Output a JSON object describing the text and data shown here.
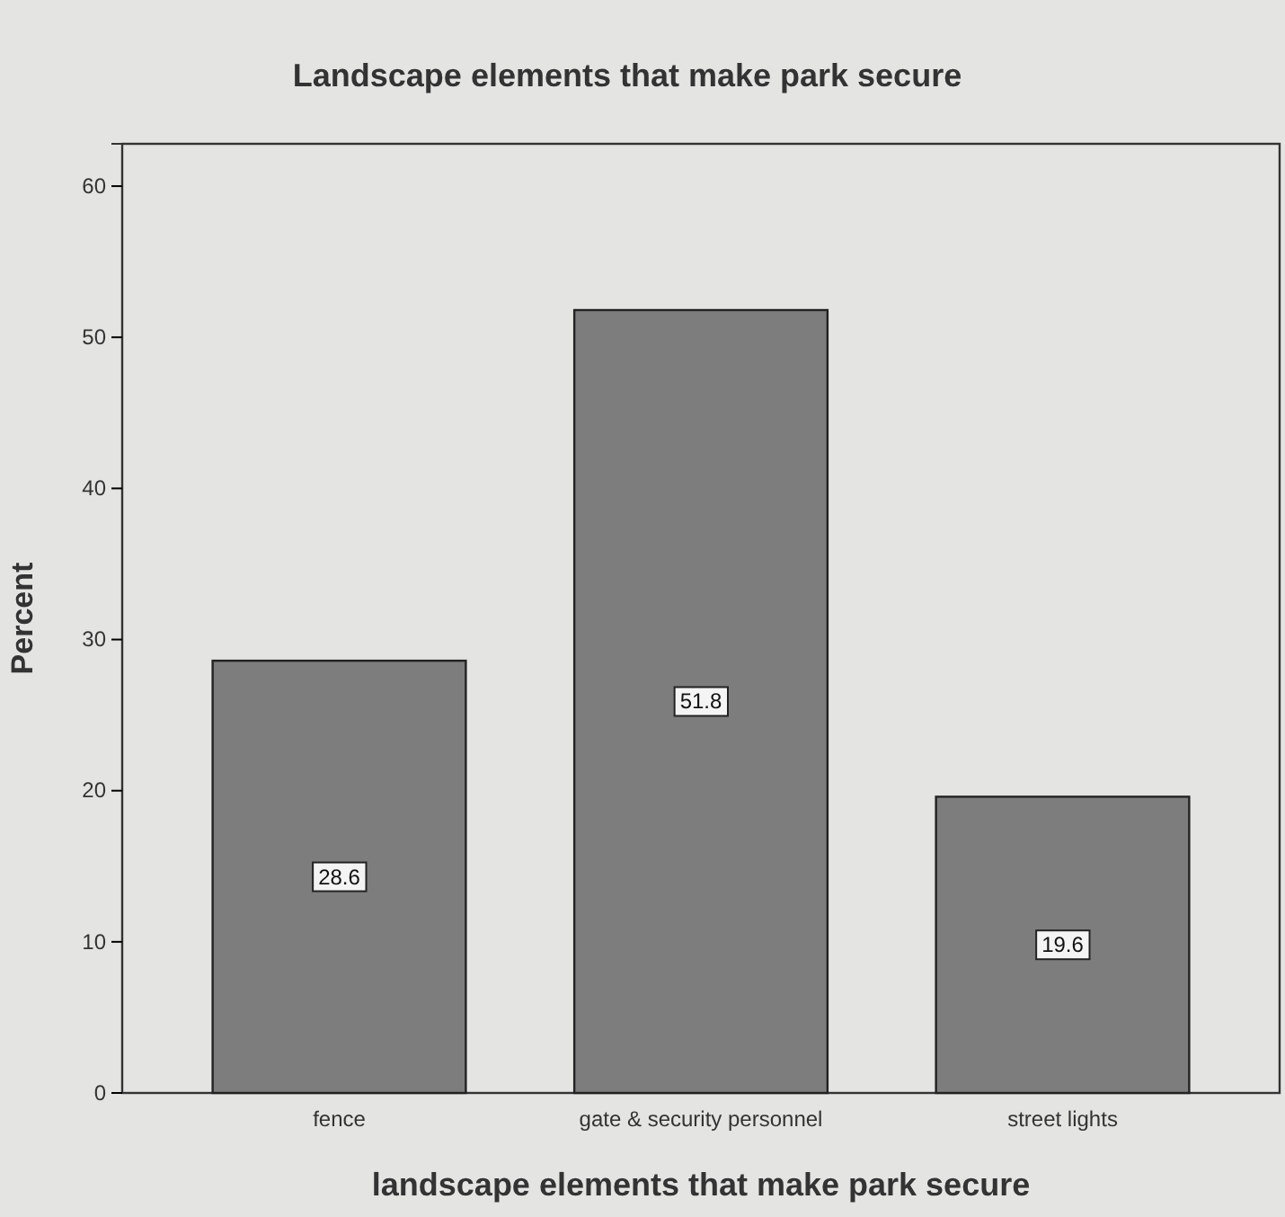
{
  "chart_data": {
    "type": "bar",
    "title": "Landscape elements that make park secure",
    "xlabel": "landscape elements that make park secure",
    "ylabel": "Percent",
    "categories": [
      "fence",
      "gate & security personnel",
      "street lights"
    ],
    "values": [
      28.6,
      51.8,
      19.6
    ],
    "color": "#7d7d7d",
    "ylim": [
      0,
      62.8
    ],
    "yticks": [
      0,
      10,
      20,
      30,
      40,
      50,
      60
    ],
    "grid": false,
    "data_labels": true
  }
}
